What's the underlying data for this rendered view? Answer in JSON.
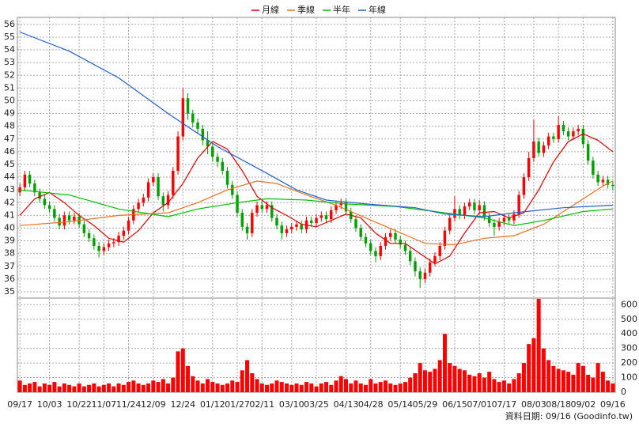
{
  "chart_data": {
    "type": "candlestick",
    "grid": true,
    "up_color": "#ff0000",
    "down_color": "#00a000",
    "xlim": [
      -0.5,
      120.5
    ],
    "xticks": [
      {
        "value": 0,
        "label": "09/17"
      },
      {
        "value": 6,
        "label": "10/03"
      },
      {
        "value": 12,
        "label": "10/22"
      },
      {
        "value": 17,
        "label": "11/07"
      },
      {
        "value": 22,
        "label": "11/24"
      },
      {
        "value": 27,
        "label": "12/09"
      },
      {
        "value": 33,
        "label": "12/24"
      },
      {
        "value": 39,
        "label": "01/12"
      },
      {
        "value": 44,
        "label": "01/27"
      },
      {
        "value": 49,
        "label": "02/11"
      },
      {
        "value": 55,
        "label": "03/10"
      },
      {
        "value": 60,
        "label": "03/25"
      },
      {
        "value": 66,
        "label": "04/13"
      },
      {
        "value": 71,
        "label": "04/28"
      },
      {
        "value": 77,
        "label": "05/14"
      },
      {
        "value": 82,
        "label": "05/29"
      },
      {
        "value": 88,
        "label": "06/15"
      },
      {
        "value": 93,
        "label": "07/01"
      },
      {
        "value": 98,
        "label": "07/17"
      },
      {
        "value": 104,
        "label": "08/03"
      },
      {
        "value": 109,
        "label": "08/18"
      },
      {
        "value": 114,
        "label": "09/02"
      },
      {
        "value": 120,
        "label": "09/16"
      }
    ],
    "ylim": [
      34.5,
      56.55
    ],
    "yticks": [
      35,
      36,
      37,
      38,
      39,
      40,
      41,
      42,
      43,
      44,
      45,
      46,
      47,
      48,
      49,
      50,
      51,
      52,
      53,
      54,
      55,
      56
    ],
    "open": [
      42.8,
      43.2,
      44.2,
      43.5,
      42.8,
      42.3,
      41.8,
      41.5,
      40.8,
      40.2,
      41.0,
      40.6,
      40.9,
      40.3,
      39.6,
      39.2,
      38.6,
      38.2,
      38.5,
      38.8,
      38.9,
      39.4,
      39.8,
      40.6,
      41.5,
      42.0,
      42.4,
      43.6,
      44.0,
      42.5,
      41.8,
      42.6,
      44.5,
      47.2,
      50.2,
      49.0,
      48.3,
      47.8,
      46.9,
      46.4,
      45.6,
      45.2,
      44.5,
      43.4,
      42.6,
      41.2,
      40.1,
      39.6,
      41.2,
      41.8,
      41.5,
      41.8,
      40.8,
      40.2,
      39.6,
      39.9,
      40.1,
      40.3,
      39.9,
      40.6,
      40.4,
      40.8,
      41.0,
      40.7,
      41.4,
      41.8,
      42.0,
      41.3,
      40.7,
      40.0,
      39.3,
      38.8,
      38.2,
      37.8,
      38.6,
      39.3,
      39.6,
      39.1,
      38.7,
      38.2,
      37.4,
      36.6,
      36.0,
      36.5,
      37.3,
      37.8,
      38.6,
      39.8,
      40.8,
      41.5,
      41.0,
      41.7,
      42.0,
      41.4,
      41.8,
      40.9,
      40.4,
      40.1,
      40.5,
      40.8,
      40.6,
      41.1,
      42.6,
      44.0,
      45.5,
      46.8,
      45.9,
      46.5,
      47.2,
      47.0,
      48.1,
      47.6,
      47.2,
      47.6,
      47.8,
      46.6,
      45.3,
      44.2,
      43.6,
      43.8,
      43.4
    ],
    "high": [
      43.5,
      44.5,
      44.5,
      43.8,
      43.1,
      42.6,
      42.1,
      41.8,
      41.1,
      41.3,
      41.3,
      41.2,
      41.2,
      40.6,
      39.9,
      39.5,
      38.9,
      38.8,
      39.1,
      39.2,
      39.7,
      40.1,
      40.9,
      41.8,
      42.3,
      42.7,
      43.9,
      44.3,
      44.3,
      42.8,
      42.9,
      44.8,
      47.6,
      51.0,
      50.6,
      49.3,
      48.6,
      48.1,
      47.6,
      46.7,
      45.9,
      45.5,
      44.8,
      43.7,
      42.9,
      41.5,
      40.4,
      41.5,
      42.1,
      42.2,
      42.1,
      42.1,
      41.1,
      40.5,
      40.2,
      40.4,
      40.6,
      40.6,
      40.9,
      40.9,
      41.1,
      41.3,
      41.3,
      41.7,
      42.1,
      42.3,
      42.3,
      41.6,
      41.0,
      40.3,
      39.6,
      39.1,
      38.5,
      38.9,
      39.6,
      39.9,
      39.9,
      39.4,
      39.0,
      38.5,
      37.7,
      36.9,
      36.8,
      37.6,
      38.1,
      38.9,
      40.1,
      41.1,
      42.5,
      41.8,
      42.0,
      42.3,
      42.3,
      42.2,
      42.1,
      41.2,
      40.7,
      40.8,
      41.1,
      41.1,
      41.4,
      42.9,
      44.3,
      46.0,
      48.5,
      47.1,
      46.8,
      47.5,
      47.5,
      48.8,
      48.4,
      47.9,
      47.9,
      48.1,
      48.1,
      46.9,
      45.6,
      44.5,
      44.1,
      44.1,
      43.7
    ],
    "low": [
      42.5,
      42.9,
      43.2,
      42.5,
      42.0,
      41.5,
      41.2,
      40.5,
      39.9,
      39.9,
      40.3,
      40.3,
      40.0,
      39.3,
      38.9,
      38.3,
      37.7,
      37.9,
      38.2,
      38.5,
      38.6,
      39.1,
      39.5,
      40.3,
      41.2,
      41.7,
      42.1,
      43.3,
      42.2,
      41.3,
      41.5,
      42.3,
      44.2,
      46.9,
      48.5,
      47.9,
      47.4,
      46.5,
      45.8,
      45.2,
      44.8,
      44.2,
      43.1,
      42.3,
      40.9,
      39.8,
      39.1,
      39.3,
      40.9,
      41.2,
      41.2,
      40.5,
      39.9,
      39.1,
      39.3,
      39.6,
      39.8,
      39.6,
      39.6,
      40.1,
      40.1,
      40.5,
      40.4,
      40.4,
      41.1,
      41.5,
      41.0,
      40.4,
      39.7,
      39.0,
      38.5,
      37.9,
      37.3,
      37.5,
      38.3,
      39.0,
      38.8,
      38.4,
      37.9,
      37.1,
      36.2,
      35.3,
      35.7,
      36.2,
      37.0,
      37.5,
      38.3,
      39.5,
      40.5,
      40.7,
      40.7,
      41.4,
      41.1,
      41.1,
      40.6,
      40.1,
      39.4,
      39.8,
      40.2,
      40.3,
      40.3,
      40.8,
      42.3,
      43.7,
      45.2,
      45.6,
      45.6,
      46.2,
      46.7,
      46.7,
      47.3,
      46.9,
      46.9,
      47.3,
      46.3,
      45.0,
      43.9,
      43.3,
      43.3,
      43.1,
      43.0
    ],
    "close": [
      43.2,
      44.2,
      43.5,
      42.8,
      42.3,
      41.8,
      41.5,
      40.8,
      40.2,
      41.0,
      40.6,
      40.9,
      40.3,
      39.6,
      39.2,
      38.6,
      38.2,
      38.5,
      38.8,
      38.9,
      39.4,
      39.8,
      40.6,
      41.5,
      42.0,
      42.4,
      43.6,
      44.0,
      42.5,
      41.8,
      42.6,
      44.5,
      47.2,
      50.2,
      49.0,
      48.3,
      47.8,
      46.9,
      46.4,
      45.6,
      45.2,
      44.5,
      43.4,
      42.6,
      41.2,
      40.1,
      39.6,
      41.2,
      41.8,
      41.5,
      41.8,
      40.8,
      40.2,
      39.6,
      39.9,
      40.1,
      40.3,
      39.9,
      40.6,
      40.4,
      40.8,
      41.0,
      40.7,
      41.4,
      41.8,
      42.0,
      41.3,
      40.7,
      40.0,
      39.3,
      38.8,
      38.2,
      37.8,
      38.6,
      39.3,
      39.6,
      39.1,
      38.7,
      38.2,
      37.4,
      36.6,
      36.0,
      36.5,
      37.3,
      37.8,
      38.6,
      39.8,
      40.8,
      41.5,
      41.0,
      41.7,
      42.0,
      41.4,
      41.8,
      40.9,
      40.4,
      40.1,
      40.5,
      40.8,
      40.6,
      41.1,
      42.6,
      44.0,
      45.5,
      46.8,
      45.9,
      46.5,
      47.2,
      47.0,
      48.1,
      47.6,
      47.2,
      47.6,
      47.8,
      46.6,
      45.3,
      44.2,
      43.6,
      43.8,
      43.4,
      43.3
    ],
    "series": [
      {
        "name": "月線",
        "color": "#e00000",
        "x": [
          0,
          3,
          6,
          9,
          12,
          15,
          18,
          21,
          24,
          27,
          30,
          33,
          36,
          39,
          42,
          45,
          48,
          51,
          54,
          57,
          60,
          63,
          66,
          69,
          72,
          75,
          78,
          81,
          84,
          87,
          90,
          93,
          96,
          99,
          102,
          105,
          108,
          111,
          114,
          117,
          120
        ],
        "values": [
          41.0,
          42.3,
          42.8,
          42.0,
          41.0,
          40.2,
          39.2,
          38.9,
          39.8,
          41.2,
          42.0,
          43.5,
          45.5,
          46.8,
          46.2,
          44.5,
          42.5,
          41.6,
          41.0,
          40.3,
          40.1,
          40.6,
          41.1,
          40.8,
          39.6,
          38.8,
          38.8,
          38.0,
          37.2,
          37.8,
          39.6,
          41.2,
          41.3,
          40.8,
          41.2,
          43.0,
          45.2,
          46.8,
          47.4,
          46.9,
          46.0
        ]
      },
      {
        "name": "季線",
        "color": "#f07020",
        "x": [
          0,
          10,
          20,
          30,
          36,
          42,
          48,
          52,
          58,
          64,
          70,
          76,
          82,
          88,
          94,
          100,
          106,
          112,
          118,
          120
        ],
        "values": [
          40.2,
          40.5,
          41.0,
          41.2,
          42.0,
          43.0,
          43.7,
          43.5,
          42.6,
          41.8,
          40.8,
          39.8,
          38.8,
          38.7,
          39.2,
          39.4,
          40.3,
          41.8,
          43.3,
          43.7
        ]
      },
      {
        "name": "半年",
        "color": "#00c000",
        "x": [
          0,
          10,
          20,
          30,
          36,
          44,
          50,
          58,
          66,
          76,
          86,
          94,
          100,
          106,
          114,
          120
        ],
        "values": [
          43.0,
          42.6,
          41.5,
          40.9,
          41.5,
          42.0,
          42.3,
          42.2,
          41.9,
          41.7,
          41.2,
          40.8,
          40.2,
          40.6,
          41.3,
          41.5
        ]
      },
      {
        "name": "年線",
        "color": "#2060d0",
        "x": [
          0,
          10,
          20,
          30,
          40,
          50,
          56,
          62,
          70,
          80,
          86,
          94,
          100,
          110,
          120
        ],
        "values": [
          55.4,
          53.9,
          51.8,
          49.0,
          46.4,
          44.3,
          43.0,
          42.2,
          41.9,
          41.6,
          41.1,
          40.9,
          41.2,
          41.6,
          41.8
        ]
      }
    ],
    "volume": {
      "color": "#ff0000",
      "ylim": [
        0,
        645
      ],
      "yticks": [
        0,
        100,
        200,
        300,
        400,
        500,
        600
      ],
      "values": [
        80,
        50,
        60,
        70,
        40,
        60,
        50,
        70,
        40,
        60,
        50,
        40,
        60,
        40,
        50,
        60,
        40,
        50,
        60,
        40,
        60,
        50,
        70,
        80,
        60,
        50,
        60,
        80,
        70,
        90,
        60,
        100,
        280,
        300,
        180,
        110,
        80,
        60,
        90,
        70,
        60,
        50,
        60,
        80,
        70,
        150,
        220,
        130,
        90,
        60,
        50,
        60,
        80,
        70,
        60,
        50,
        60,
        50,
        70,
        60,
        40,
        60,
        70,
        50,
        80,
        110,
        90,
        60,
        80,
        60,
        50,
        90,
        60,
        70,
        80,
        60,
        50,
        60,
        70,
        100,
        130,
        200,
        150,
        140,
        160,
        220,
        400,
        200,
        180,
        160,
        150,
        120,
        110,
        130,
        100,
        140,
        90,
        70,
        80,
        60,
        90,
        130,
        200,
        330,
        370,
        640,
        300,
        220,
        180,
        160,
        150,
        140,
        120,
        200,
        180,
        120,
        100,
        200,
        140,
        80,
        60
      ]
    },
    "footer": "資料日期: 09/16 (Goodinfo.tw)"
  }
}
